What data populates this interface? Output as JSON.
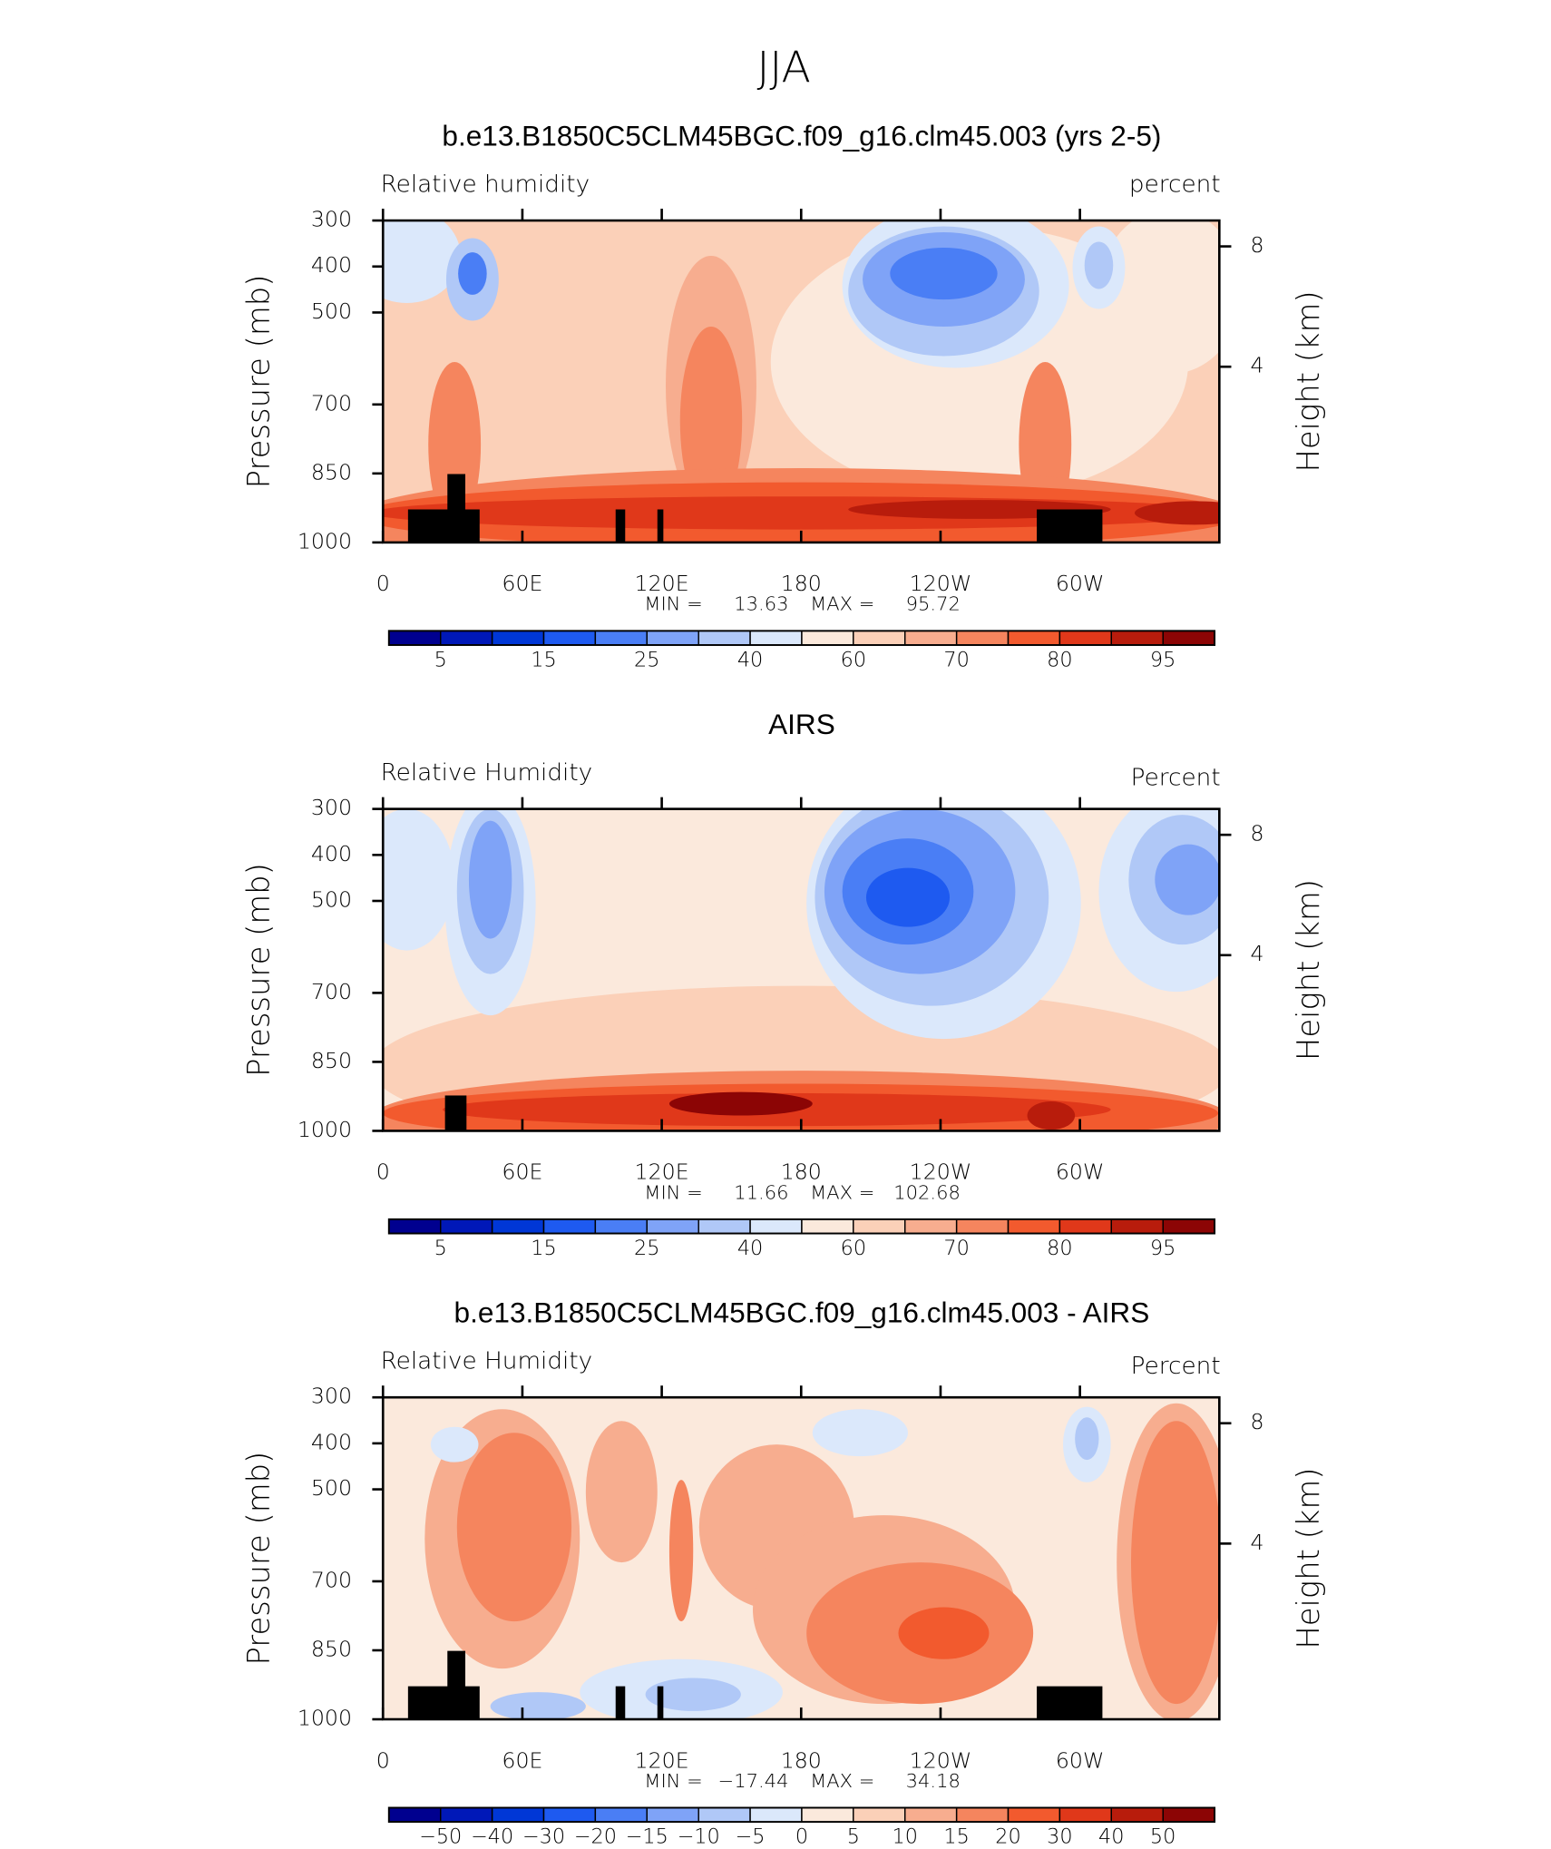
{
  "title": "JJA",
  "chart_data": [
    {
      "type": "contour",
      "title": "b.e13.B1850C5CLM45BGC.f09_g16.clm45.003 (yrs 2-5)",
      "subtitle": "Relative humidity",
      "units": "percent",
      "ylabel": "Pressure (mb)",
      "y2label": "Height (km)",
      "xlim": [
        0,
        360
      ],
      "xticks": [
        0,
        {
          "value": 60,
          "label": "60E"
        },
        {
          "value": 120,
          "label": "120E"
        },
        180,
        {
          "value": 240,
          "label": "120W"
        },
        {
          "value": 300,
          "label": "60W"
        }
      ],
      "ylim": [
        1000,
        300
      ],
      "yticks": [
        300,
        400,
        500,
        700,
        850,
        1000
      ],
      "y2lim": [
        -1.84,
        8.86
      ],
      "y2ticks": [
        8,
        4
      ],
      "stats": {
        "min_label": "MIN =",
        "min": 13.63,
        "max_label": "MAX =",
        "max": 95.72
      },
      "colorbar": {
        "colors": [
          "#00008f",
          "#0018b8",
          "#0037d6",
          "#1e5af0",
          "#4a7ef5",
          "#7fa3f7",
          "#b0c8f7",
          "#dbe8fb",
          "#fbe9dc",
          "#fbd0b8",
          "#f7ad8f",
          "#f5855e",
          "#f25a2e",
          "#e0381a",
          "#b81c0c",
          "#8c0505"
        ],
        "levels": [
          5,
          10,
          15,
          20,
          25,
          30,
          40,
          50,
          60,
          65,
          70,
          75,
          80,
          85,
          95
        ],
        "label_every": 2
      }
    },
    {
      "type": "contour",
      "title": "AIRS",
      "subtitle": "Relative Humidity",
      "units": "Percent",
      "ylabel": "Pressure (mb)",
      "y2label": "Height (km)",
      "xlim": [
        0,
        360
      ],
      "xticks": [
        0,
        {
          "value": 60,
          "label": "60E"
        },
        {
          "value": 120,
          "label": "120E"
        },
        180,
        {
          "value": 240,
          "label": "120W"
        },
        {
          "value": 300,
          "label": "60W"
        }
      ],
      "ylim": [
        1000,
        300
      ],
      "yticks": [
        300,
        400,
        500,
        700,
        850,
        1000
      ],
      "y2lim": [
        -1.84,
        8.86
      ],
      "y2ticks": [
        8,
        4
      ],
      "stats": {
        "min_label": "MIN =",
        "min": 11.66,
        "max_label": "MAX =",
        "max": 102.68
      },
      "colorbar": {
        "colors": [
          "#00008f",
          "#0018b8",
          "#0037d6",
          "#1e5af0",
          "#4a7ef5",
          "#7fa3f7",
          "#b0c8f7",
          "#dbe8fb",
          "#fbe9dc",
          "#fbd0b8",
          "#f7ad8f",
          "#f5855e",
          "#f25a2e",
          "#e0381a",
          "#b81c0c",
          "#8c0505"
        ],
        "levels": [
          5,
          10,
          15,
          20,
          25,
          30,
          40,
          50,
          60,
          65,
          70,
          75,
          80,
          85,
          95
        ],
        "label_every": 2
      }
    },
    {
      "type": "contour",
      "title": "b.e13.B1850C5CLM45BGC.f09_g16.clm45.003 - AIRS",
      "subtitle": "Relative Humidity",
      "units": "Percent",
      "ylabel": "Pressure (mb)",
      "y2label": "Height (km)",
      "xlim": [
        0,
        360
      ],
      "xticks": [
        0,
        {
          "value": 60,
          "label": "60E"
        },
        {
          "value": 120,
          "label": "120E"
        },
        180,
        {
          "value": 240,
          "label": "120W"
        },
        {
          "value": 300,
          "label": "60W"
        }
      ],
      "ylim": [
        1000,
        300
      ],
      "yticks": [
        300,
        400,
        500,
        700,
        850,
        1000
      ],
      "y2lim": [
        -1.84,
        8.86
      ],
      "y2ticks": [
        8,
        4
      ],
      "stats": {
        "min_label": "MIN =",
        "min": {
          "value": -17.44,
          "label": "−17.44"
        },
        "max_label": "MAX =",
        "max": 34.18
      },
      "colorbar": {
        "colors": [
          "#00008f",
          "#0018b8",
          "#0037d6",
          "#1e5af0",
          "#4a7ef5",
          "#7fa3f7",
          "#b0c8f7",
          "#dbe8fb",
          "#fbe9dc",
          "#fbd0b8",
          "#f7ad8f",
          "#f5855e",
          "#f25a2e",
          "#e0381a",
          "#b81c0c",
          "#8c0505"
        ],
        "levels": [
          {
            "value": -50,
            "label": "−50"
          },
          {
            "value": -40,
            "label": "−40"
          },
          {
            "value": -30,
            "label": "−30"
          },
          {
            "value": -20,
            "label": "−20"
          },
          {
            "value": -15,
            "label": "−15"
          },
          {
            "value": -10,
            "label": "−10"
          },
          {
            "value": -5,
            "label": "−5"
          },
          0,
          5,
          10,
          15,
          20,
          30,
          40,
          50
        ],
        "label_every": 1
      }
    }
  ]
}
